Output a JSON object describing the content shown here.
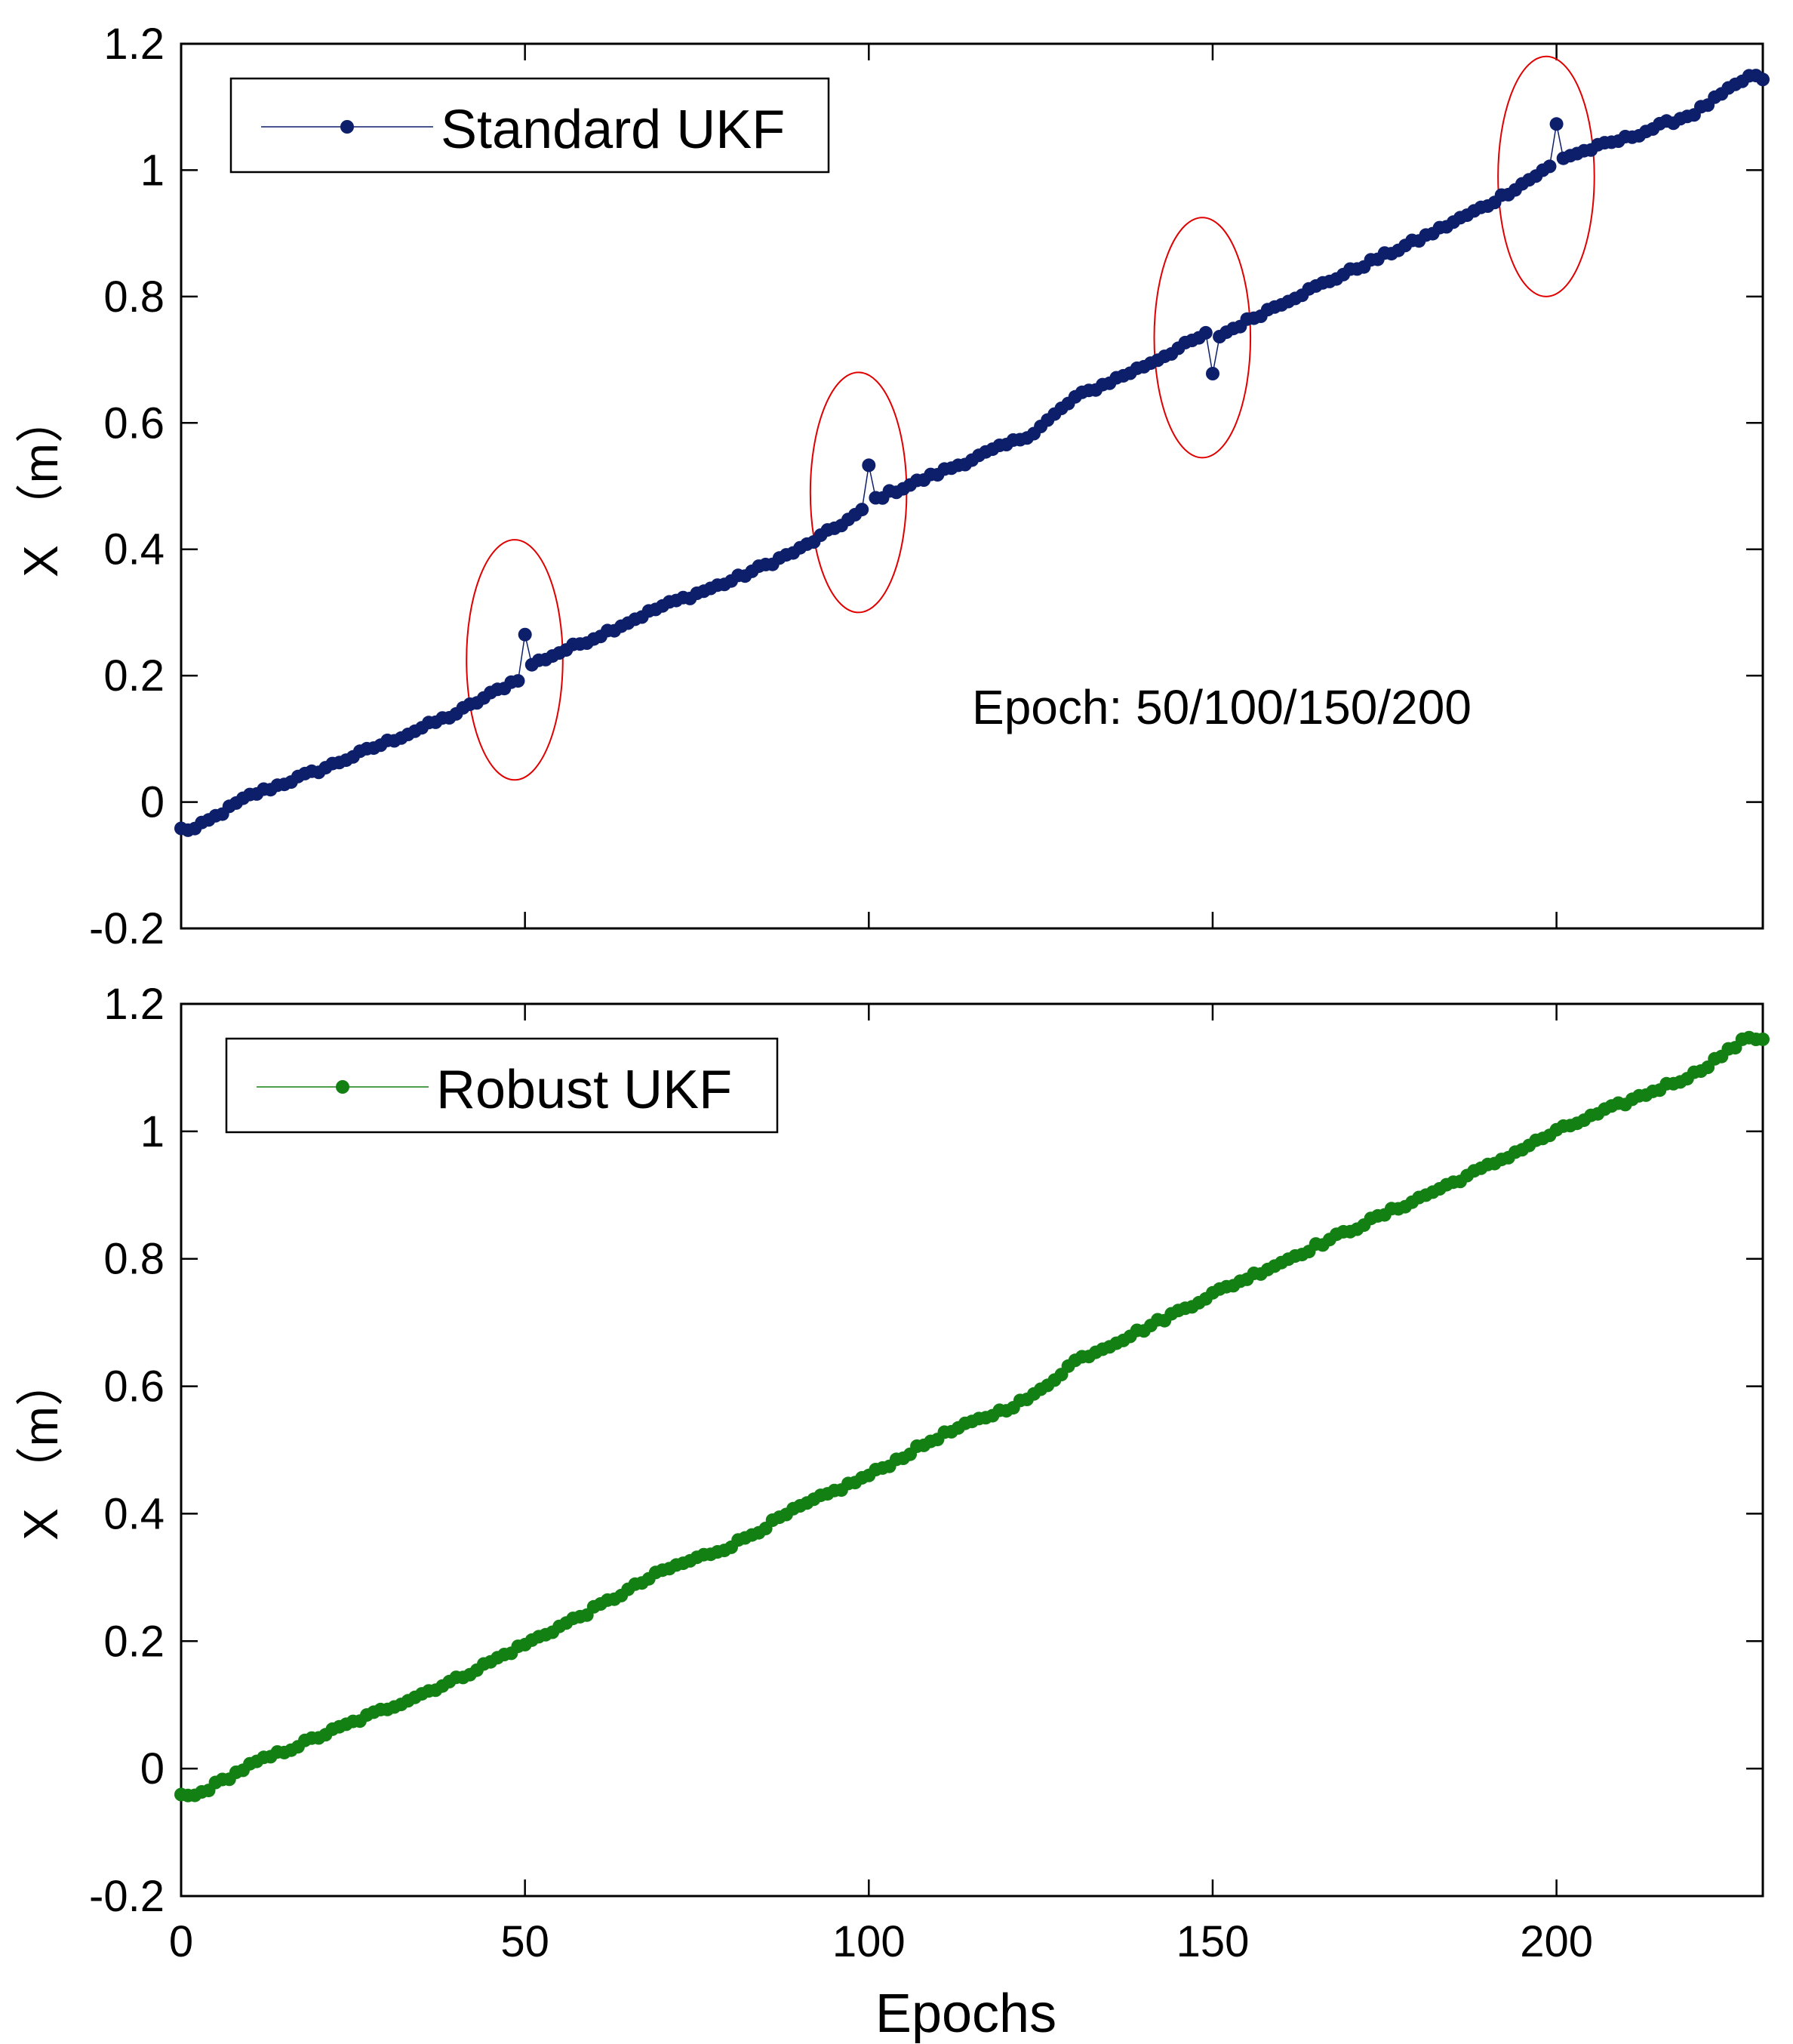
{
  "chart_data": [
    {
      "type": "line",
      "name": "standard",
      "xlim": [
        0,
        230
      ],
      "ylim": [
        -0.2,
        1.2
      ],
      "xticks": [
        0,
        50,
        100,
        150,
        200
      ],
      "yticks": [
        -0.2,
        0,
        0.2,
        0.4,
        0.6,
        0.8,
        1,
        1.2
      ],
      "xtick_labels": [
        "0",
        "50",
        "100",
        "150",
        "200"
      ],
      "ytick_labels": [
        "-0.2",
        "0",
        "0.2",
        "0.4",
        "0.6",
        "0.8",
        "1",
        "1.2"
      ],
      "show_xtick_labels": false,
      "xlabel": "",
      "ylabel": "X （m）",
      "legend": {
        "label": "Standard UKF",
        "position": "top-left"
      },
      "annotation": {
        "text": "Epoch: 50/100/150/200",
        "x": 115,
        "y": 0.15
      },
      "highlight_ellipses": [
        {
          "cx": 48.5,
          "cy": 0.225,
          "rx": 7,
          "ry": 0.19
        },
        {
          "cx": 98.5,
          "cy": 0.49,
          "rx": 7,
          "ry": 0.19
        },
        {
          "cx": 148.5,
          "cy": 0.735,
          "rx": 7,
          "ry": 0.19
        },
        {
          "cx": 198.5,
          "cy": 0.99,
          "rx": 7,
          "ry": 0.19
        }
      ],
      "color": "#0d1f6b",
      "outliers": [
        {
          "epoch": 50,
          "value": 0.265
        },
        {
          "epoch": 100,
          "value": 0.533
        },
        {
          "epoch": 150,
          "value": 0.678
        },
        {
          "epoch": 200,
          "value": 1.073
        }
      ],
      "anchors_x": [
        0,
        2,
        10,
        20,
        30,
        40,
        49,
        51,
        60,
        70,
        80,
        90,
        99,
        101,
        110,
        120,
        124,
        130,
        140,
        149,
        151,
        160,
        170,
        180,
        190,
        199,
        201,
        210,
        220,
        228,
        230
      ],
      "anchors_y": [
        -0.043,
        -0.043,
        0.01,
        0.05,
        0.095,
        0.14,
        0.195,
        0.218,
        0.26,
        0.31,
        0.35,
        0.4,
        0.46,
        0.48,
        0.52,
        0.565,
        0.585,
        0.64,
        0.69,
        0.74,
        0.738,
        0.79,
        0.84,
        0.89,
        0.945,
        1.005,
        1.02,
        1.05,
        1.09,
        1.148,
        1.145
      ]
    },
    {
      "type": "line",
      "name": "robust",
      "xlim": [
        0,
        230
      ],
      "ylim": [
        -0.2,
        1.2
      ],
      "xticks": [
        0,
        50,
        100,
        150,
        200
      ],
      "yticks": [
        -0.2,
        0,
        0.2,
        0.4,
        0.6,
        0.8,
        1,
        1.2
      ],
      "xtick_labels": [
        "0",
        "50",
        "100",
        "150",
        "200"
      ],
      "ytick_labels": [
        "-0.2",
        "0",
        "0.2",
        "0.4",
        "0.6",
        "0.8",
        "1",
        "1.2"
      ],
      "show_xtick_labels": true,
      "xlabel": "Epochs",
      "ylabel": "X （m）",
      "legend": {
        "label": "Robust UKF",
        "position": "top-left"
      },
      "color": "#138013",
      "outliers": [],
      "anchors_x": [
        0,
        2,
        10,
        20,
        30,
        40,
        50,
        60,
        70,
        80,
        90,
        100,
        110,
        120,
        124,
        130,
        140,
        150,
        160,
        170,
        180,
        190,
        200,
        210,
        220,
        228,
        230
      ],
      "anchors_y": [
        -0.043,
        -0.043,
        0.005,
        0.05,
        0.095,
        0.14,
        0.195,
        0.25,
        0.31,
        0.35,
        0.41,
        0.46,
        0.52,
        0.565,
        0.585,
        0.64,
        0.69,
        0.745,
        0.795,
        0.845,
        0.895,
        0.945,
        1.0,
        1.045,
        1.09,
        1.148,
        1.145
      ]
    }
  ]
}
